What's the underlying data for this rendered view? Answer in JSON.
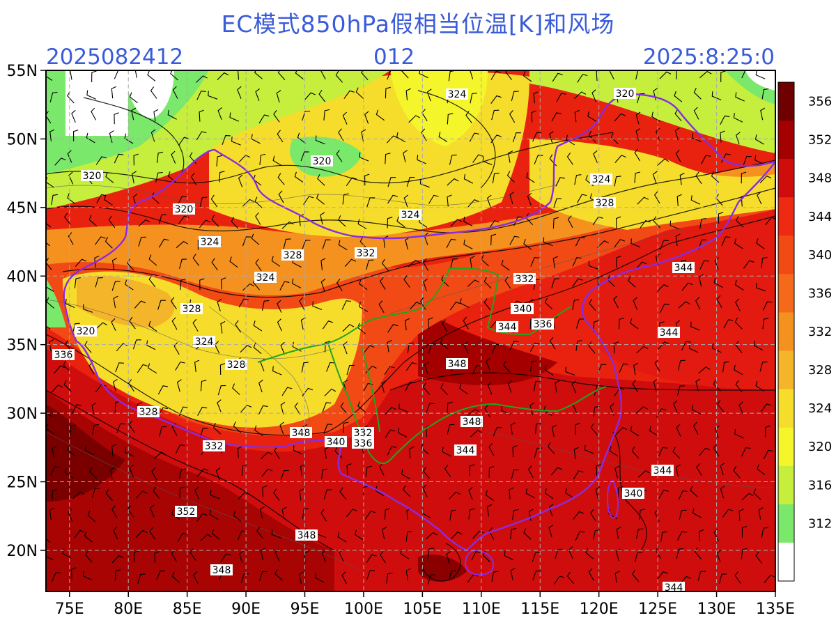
{
  "title": "EC模式850hPa假相当位温[K]和风场",
  "header": {
    "init_time": "2025082412",
    "forecast_hour": "012",
    "valid_time": "2025:8:25:0"
  },
  "axes": {
    "lon_labels": [
      "75E",
      "80E",
      "85E",
      "90E",
      "95E",
      "100E",
      "105E",
      "110E",
      "115E",
      "120E",
      "125E",
      "130E",
      "135E"
    ],
    "lat_labels": [
      "55N",
      "50N",
      "45N",
      "40N",
      "35N",
      "30N",
      "25N",
      "20N"
    ]
  },
  "colorbar": {
    "levels": [
      "356",
      "352",
      "348",
      "344",
      "340",
      "336",
      "332",
      "328",
      "324",
      "320",
      "316",
      "312"
    ],
    "colors": [
      "#6e0000",
      "#a50000",
      "#d00d0d",
      "#ee2a12",
      "#f24a15",
      "#f56a1a",
      "#f5911f",
      "#f5b52a",
      "#f7dd2b",
      "#f5f52b",
      "#c6ee3c",
      "#7ae86a",
      "#ffffff"
    ]
  },
  "contour_labels": [
    {
      "text": "324"
    },
    {
      "text": "320"
    },
    {
      "text": "320"
    },
    {
      "text": "320"
    },
    {
      "text": "320"
    },
    {
      "text": "324"
    },
    {
      "text": "324"
    },
    {
      "text": "328"
    },
    {
      "text": "324"
    },
    {
      "text": "328"
    },
    {
      "text": "332"
    },
    {
      "text": "324"
    },
    {
      "text": "328"
    },
    {
      "text": "324"
    },
    {
      "text": "328"
    },
    {
      "text": "320"
    },
    {
      "text": "336"
    },
    {
      "text": "332"
    },
    {
      "text": "340"
    },
    {
      "text": "344"
    },
    {
      "text": "336"
    },
    {
      "text": "344"
    },
    {
      "text": "344"
    },
    {
      "text": "348"
    },
    {
      "text": "348"
    },
    {
      "text": "344"
    },
    {
      "text": "328"
    },
    {
      "text": "332"
    },
    {
      "text": "340"
    },
    {
      "text": "348"
    },
    {
      "text": "332"
    },
    {
      "text": "336"
    },
    {
      "text": "340"
    },
    {
      "text": "344"
    },
    {
      "text": "340"
    },
    {
      "text": "352"
    },
    {
      "text": "348"
    },
    {
      "text": "348"
    },
    {
      "text": "344"
    }
  ]
}
